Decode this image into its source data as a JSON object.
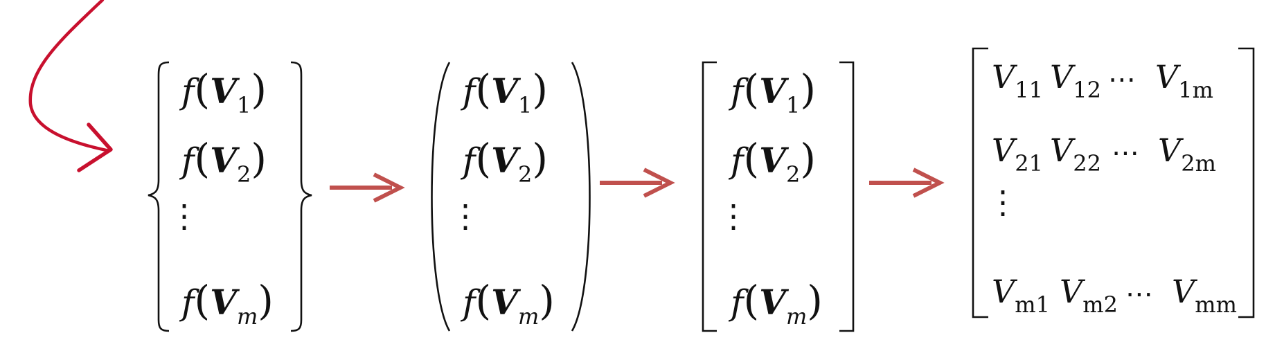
{
  "expression": {
    "f": "f",
    "open_paren": "(",
    "close_paren": ")",
    "vector": "V"
  },
  "set_entries": [
    {
      "sub": "1"
    },
    {
      "sub": "2"
    },
    {
      "sub": "m"
    }
  ],
  "vertical_ellipsis": "⋮",
  "horizontal_ellipsis": "⋯",
  "matrix": {
    "rows": [
      [
        {
          "base": "V",
          "sub": "11"
        },
        {
          "base": "V",
          "sub": "12"
        },
        {
          "base": "V",
          "sub": "1m"
        }
      ],
      [
        {
          "base": "V",
          "sub": "21"
        },
        {
          "base": "V",
          "sub": "22"
        },
        {
          "base": "V",
          "sub": "2m"
        }
      ],
      [
        {
          "base": "V",
          "sub": "m1"
        },
        {
          "base": "V",
          "sub": "m2"
        },
        {
          "base": "V",
          "sub": "mm"
        }
      ]
    ]
  },
  "colors": {
    "arrow": "#c0504d",
    "annotation_curve": "#c8102e",
    "text": "#111111"
  },
  "icons": {
    "step_arrow": "right-arrow-icon",
    "annotation": "curved-arrow-icon"
  }
}
